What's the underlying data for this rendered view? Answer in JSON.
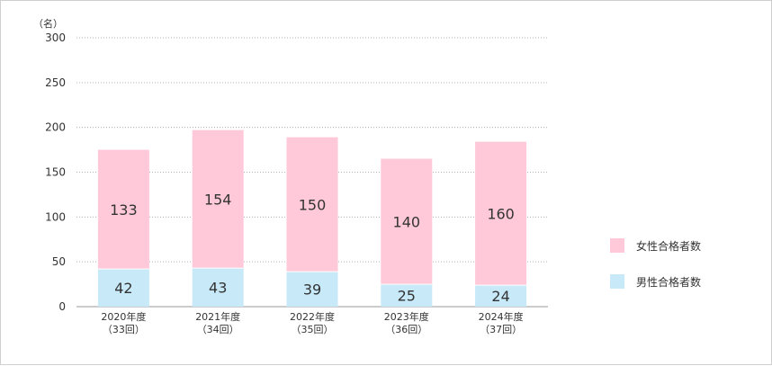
{
  "chart_data": {
    "type": "bar",
    "stacked": true,
    "unit_label": "（名）",
    "categories": [
      [
        "2020年度",
        "（33回）"
      ],
      [
        "2021年度",
        "（34回）"
      ],
      [
        "2022年度",
        "（35回）"
      ],
      [
        "2023年度",
        "（36回）"
      ],
      [
        "2024年度",
        "（37回）"
      ]
    ],
    "series": [
      {
        "name": "男性合格者数",
        "values": [
          42,
          43,
          39,
          25,
          24
        ],
        "color": "#c7e9f8"
      },
      {
        "name": "女性合格者数",
        "values": [
          133,
          154,
          150,
          140,
          160
        ],
        "color": "#ffc9da"
      }
    ],
    "ylim": [
      0,
      300
    ],
    "yticks": [
      0,
      50,
      100,
      150,
      200,
      250,
      300
    ],
    "grid": true,
    "legend_position": "right",
    "legend_order": [
      1,
      0
    ]
  }
}
